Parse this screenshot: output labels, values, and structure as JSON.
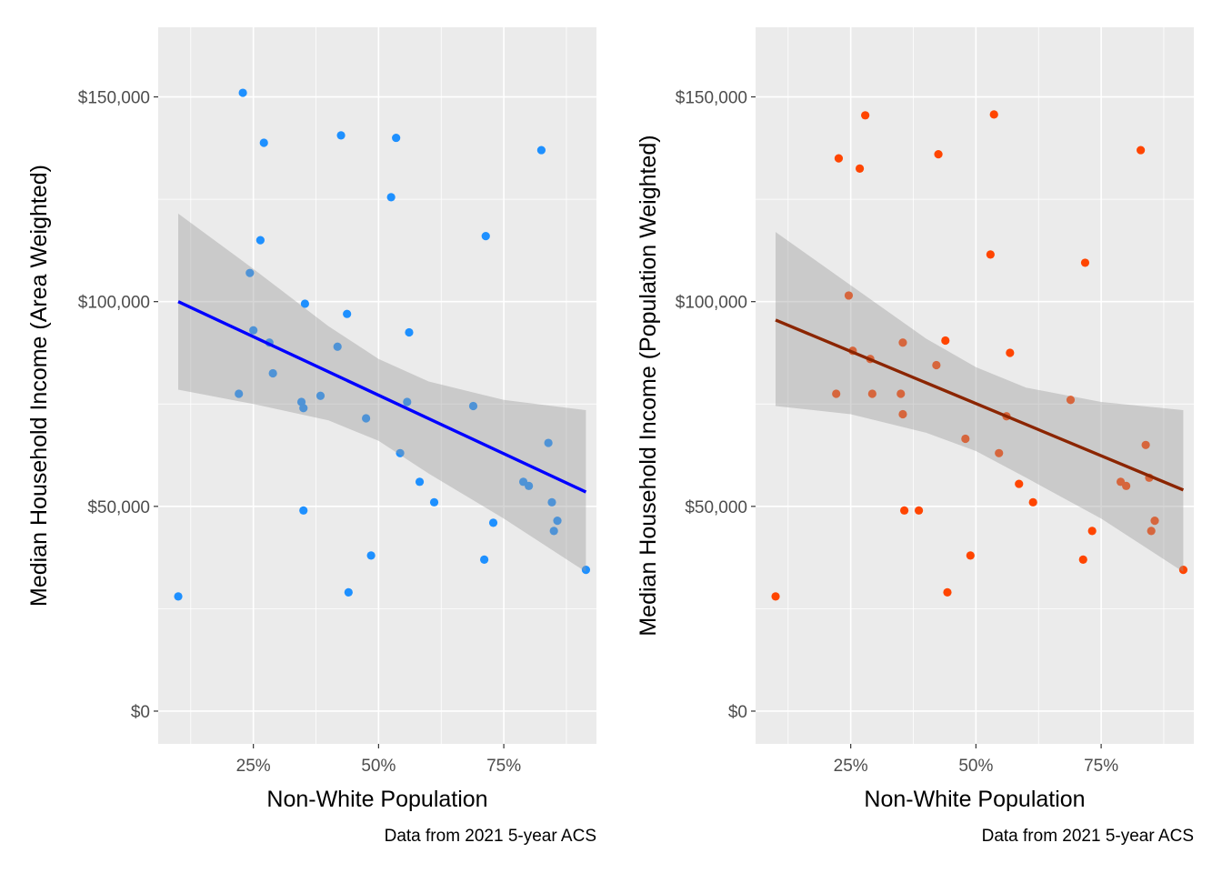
{
  "chart_data": [
    {
      "type": "scatter",
      "xlabel": "Non-White Population",
      "ylabel": "Median Household Income (Area Weighted)",
      "caption": "Data from 2021 5-year ACS",
      "xlim": [
        0.06,
        0.935
      ],
      "ylim": [
        -8000,
        167000
      ],
      "x_ticks": [
        0.25,
        0.5,
        0.75
      ],
      "x_tick_labels": [
        "25%",
        "50%",
        "75%"
      ],
      "y_ticks": [
        0,
        50000,
        100000,
        150000
      ],
      "y_tick_labels": [
        "$0",
        "$50,000",
        "$100,000",
        "$150,000"
      ],
      "grid": true,
      "point_color": "#1e90ff",
      "line_color": "#0000ff",
      "points": [
        {
          "x": 0.1,
          "y": 28000
        },
        {
          "x": 0.221,
          "y": 77500
        },
        {
          "x": 0.229,
          "y": 151000
        },
        {
          "x": 0.243,
          "y": 107000
        },
        {
          "x": 0.25,
          "y": 93000
        },
        {
          "x": 0.264,
          "y": 115000
        },
        {
          "x": 0.271,
          "y": 138800
        },
        {
          "x": 0.282,
          "y": 90000
        },
        {
          "x": 0.289,
          "y": 82500
        },
        {
          "x": 0.346,
          "y": 75500
        },
        {
          "x": 0.35,
          "y": 49000
        },
        {
          "x": 0.35,
          "y": 74000
        },
        {
          "x": 0.353,
          "y": 99500
        },
        {
          "x": 0.384,
          "y": 77000
        },
        {
          "x": 0.418,
          "y": 89000
        },
        {
          "x": 0.425,
          "y": 140600
        },
        {
          "x": 0.437,
          "y": 97000
        },
        {
          "x": 0.44,
          "y": 29000
        },
        {
          "x": 0.475,
          "y": 71500
        },
        {
          "x": 0.485,
          "y": 38000
        },
        {
          "x": 0.525,
          "y": 125500
        },
        {
          "x": 0.535,
          "y": 140000
        },
        {
          "x": 0.543,
          "y": 63000
        },
        {
          "x": 0.557,
          "y": 75500
        },
        {
          "x": 0.561,
          "y": 92500
        },
        {
          "x": 0.582,
          "y": 56000
        },
        {
          "x": 0.611,
          "y": 51000
        },
        {
          "x": 0.689,
          "y": 74500
        },
        {
          "x": 0.711,
          "y": 37000
        },
        {
          "x": 0.714,
          "y": 116000
        },
        {
          "x": 0.729,
          "y": 46000
        },
        {
          "x": 0.789,
          "y": 56000
        },
        {
          "x": 0.8,
          "y": 55000
        },
        {
          "x": 0.825,
          "y": 137000
        },
        {
          "x": 0.839,
          "y": 65500
        },
        {
          "x": 0.846,
          "y": 51000
        },
        {
          "x": 0.85,
          "y": 44000
        },
        {
          "x": 0.857,
          "y": 46500
        },
        {
          "x": 0.914,
          "y": 34500
        }
      ],
      "trend": {
        "x": [
          0.1,
          0.914
        ],
        "y": [
          100000,
          53500
        ]
      },
      "ribbon": [
        {
          "x": 0.1,
          "lower": 78500,
          "upper": 121500
        },
        {
          "x": 0.25,
          "lower": 75000,
          "upper": 108000
        },
        {
          "x": 0.4,
          "lower": 71000,
          "upper": 94000
        },
        {
          "x": 0.5,
          "lower": 66000,
          "upper": 86000
        },
        {
          "x": 0.6,
          "lower": 58000,
          "upper": 80500
        },
        {
          "x": 0.75,
          "lower": 47000,
          "upper": 76000
        },
        {
          "x": 0.914,
          "lower": 34000,
          "upper": 73500
        }
      ]
    },
    {
      "type": "scatter",
      "xlabel": "Non-White Population",
      "ylabel": "Median Household Income (Population Weighted)",
      "caption": "Data from 2021 5-year ACS",
      "xlim": [
        0.06,
        0.935
      ],
      "ylim": [
        -8000,
        167000
      ],
      "x_ticks": [
        0.25,
        0.5,
        0.75
      ],
      "x_tick_labels": [
        "25%",
        "50%",
        "75%"
      ],
      "y_ticks": [
        0,
        50000,
        100000,
        150000
      ],
      "y_tick_labels": [
        "$0",
        "$50,000",
        "$100,000",
        "$150,000"
      ],
      "grid": true,
      "point_color": "#ff4500",
      "line_color": "#8b2500",
      "points": [
        {
          "x": 0.1,
          "y": 28000
        },
        {
          "x": 0.221,
          "y": 77500
        },
        {
          "x": 0.226,
          "y": 135000
        },
        {
          "x": 0.246,
          "y": 101500
        },
        {
          "x": 0.254,
          "y": 88000
        },
        {
          "x": 0.268,
          "y": 132500
        },
        {
          "x": 0.279,
          "y": 145500
        },
        {
          "x": 0.289,
          "y": 86000
        },
        {
          "x": 0.293,
          "y": 77500
        },
        {
          "x": 0.35,
          "y": 77500
        },
        {
          "x": 0.354,
          "y": 72500
        },
        {
          "x": 0.354,
          "y": 90000
        },
        {
          "x": 0.357,
          "y": 49000
        },
        {
          "x": 0.386,
          "y": 49000
        },
        {
          "x": 0.421,
          "y": 84500
        },
        {
          "x": 0.425,
          "y": 136000
        },
        {
          "x": 0.439,
          "y": 90500
        },
        {
          "x": 0.443,
          "y": 29000
        },
        {
          "x": 0.479,
          "y": 66500
        },
        {
          "x": 0.489,
          "y": 38000
        },
        {
          "x": 0.529,
          "y": 111500
        },
        {
          "x": 0.536,
          "y": 145700
        },
        {
          "x": 0.546,
          "y": 63000
        },
        {
          "x": 0.561,
          "y": 72000
        },
        {
          "x": 0.568,
          "y": 87500
        },
        {
          "x": 0.586,
          "y": 55500
        },
        {
          "x": 0.614,
          "y": 51000
        },
        {
          "x": 0.689,
          "y": 76000
        },
        {
          "x": 0.714,
          "y": 37000
        },
        {
          "x": 0.718,
          "y": 109500
        },
        {
          "x": 0.732,
          "y": 44000
        },
        {
          "x": 0.789,
          "y": 56000
        },
        {
          "x": 0.8,
          "y": 55000
        },
        {
          "x": 0.829,
          "y": 137000
        },
        {
          "x": 0.839,
          "y": 65000
        },
        {
          "x": 0.846,
          "y": 57000
        },
        {
          "x": 0.85,
          "y": 44000
        },
        {
          "x": 0.857,
          "y": 46500
        },
        {
          "x": 0.914,
          "y": 34500
        }
      ],
      "trend": {
        "x": [
          0.1,
          0.914
        ],
        "y": [
          95500,
          54000
        ]
      },
      "ribbon": [
        {
          "x": 0.1,
          "lower": 74500,
          "upper": 117000
        },
        {
          "x": 0.25,
          "lower": 72500,
          "upper": 104000
        },
        {
          "x": 0.4,
          "lower": 68000,
          "upper": 91000
        },
        {
          "x": 0.5,
          "lower": 63500,
          "upper": 84000
        },
        {
          "x": 0.6,
          "lower": 57000,
          "upper": 79000
        },
        {
          "x": 0.75,
          "lower": 47000,
          "upper": 75500
        },
        {
          "x": 0.914,
          "lower": 34000,
          "upper": 73500
        }
      ]
    }
  ]
}
